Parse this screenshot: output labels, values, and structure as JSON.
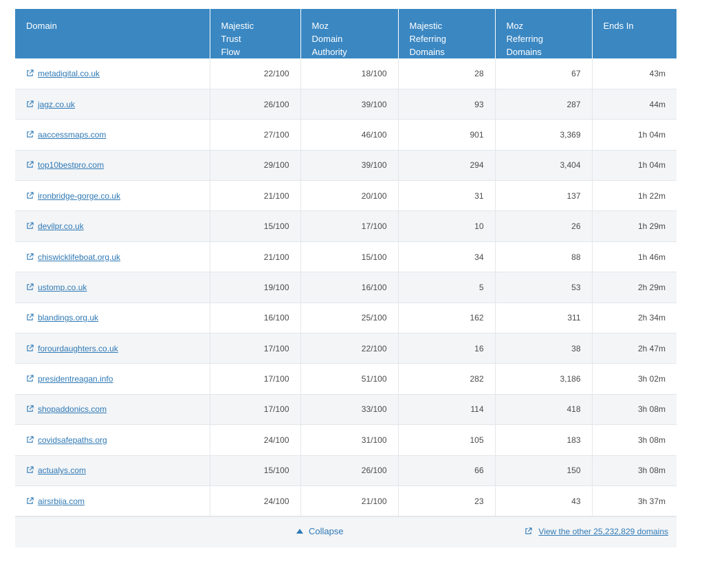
{
  "table": {
    "headers": [
      [
        "Domain"
      ],
      [
        "Majestic",
        "Trust",
        "Flow"
      ],
      [
        "Moz",
        "Domain",
        "Authority"
      ],
      [
        "Majestic",
        "Referring",
        "Domains"
      ],
      [
        "Moz",
        "Referring",
        "Domains"
      ],
      [
        "Ends In"
      ]
    ],
    "rows": [
      {
        "domain": "metadigital.co.uk",
        "mtf": "22/100",
        "mda": "18/100",
        "mrd": "28",
        "mozrd": "67",
        "ends": "43m"
      },
      {
        "domain": "jagz.co.uk",
        "mtf": "26/100",
        "mda": "39/100",
        "mrd": "93",
        "mozrd": "287",
        "ends": "44m"
      },
      {
        "domain": "aaccessmaps.com",
        "mtf": "27/100",
        "mda": "46/100",
        "mrd": "901",
        "mozrd": "3,369",
        "ends": "1h 04m"
      },
      {
        "domain": "top10bestpro.com",
        "mtf": "29/100",
        "mda": "39/100",
        "mrd": "294",
        "mozrd": "3,404",
        "ends": "1h 04m"
      },
      {
        "domain": "ironbridge-gorge.co.uk",
        "mtf": "21/100",
        "mda": "20/100",
        "mrd": "31",
        "mozrd": "137",
        "ends": "1h 22m"
      },
      {
        "domain": "devilpr.co.uk",
        "mtf": "15/100",
        "mda": "17/100",
        "mrd": "10",
        "mozrd": "26",
        "ends": "1h 29m"
      },
      {
        "domain": "chiswicklifeboat.org.uk",
        "mtf": "21/100",
        "mda": "15/100",
        "mrd": "34",
        "mozrd": "88",
        "ends": "1h 46m"
      },
      {
        "domain": "ustomp.co.uk",
        "mtf": "19/100",
        "mda": "16/100",
        "mrd": "5",
        "mozrd": "53",
        "ends": "2h 29m"
      },
      {
        "domain": "blandings.org.uk",
        "mtf": "16/100",
        "mda": "25/100",
        "mrd": "162",
        "mozrd": "311",
        "ends": "2h 34m"
      },
      {
        "domain": "forourdaughters.co.uk",
        "mtf": "17/100",
        "mda": "22/100",
        "mrd": "16",
        "mozrd": "38",
        "ends": "2h 47m"
      },
      {
        "domain": "presidentreagan.info",
        "mtf": "17/100",
        "mda": "51/100",
        "mrd": "282",
        "mozrd": "3,186",
        "ends": "3h 02m"
      },
      {
        "domain": "shopaddonics.com",
        "mtf": "17/100",
        "mda": "33/100",
        "mrd": "114",
        "mozrd": "418",
        "ends": "3h 08m"
      },
      {
        "domain": "covidsafepaths.org",
        "mtf": "24/100",
        "mda": "31/100",
        "mrd": "105",
        "mozrd": "183",
        "ends": "3h 08m"
      },
      {
        "domain": "actualys.com",
        "mtf": "15/100",
        "mda": "26/100",
        "mrd": "66",
        "mozrd": "150",
        "ends": "3h 08m"
      },
      {
        "domain": "airsrbija.com",
        "mtf": "24/100",
        "mda": "21/100",
        "mrd": "23",
        "mozrd": "43",
        "ends": "3h 37m"
      }
    ]
  },
  "footer": {
    "collapse_label": "Collapse",
    "view_other_label": "View the other 25,232,829 domains"
  },
  "colors": {
    "header_bg": "#3a87c2",
    "link": "#2f79b5",
    "row_alt": "#f3f5f7"
  },
  "icons": {
    "external_link": "external-link-icon",
    "collapse": "triangle-up-icon"
  }
}
